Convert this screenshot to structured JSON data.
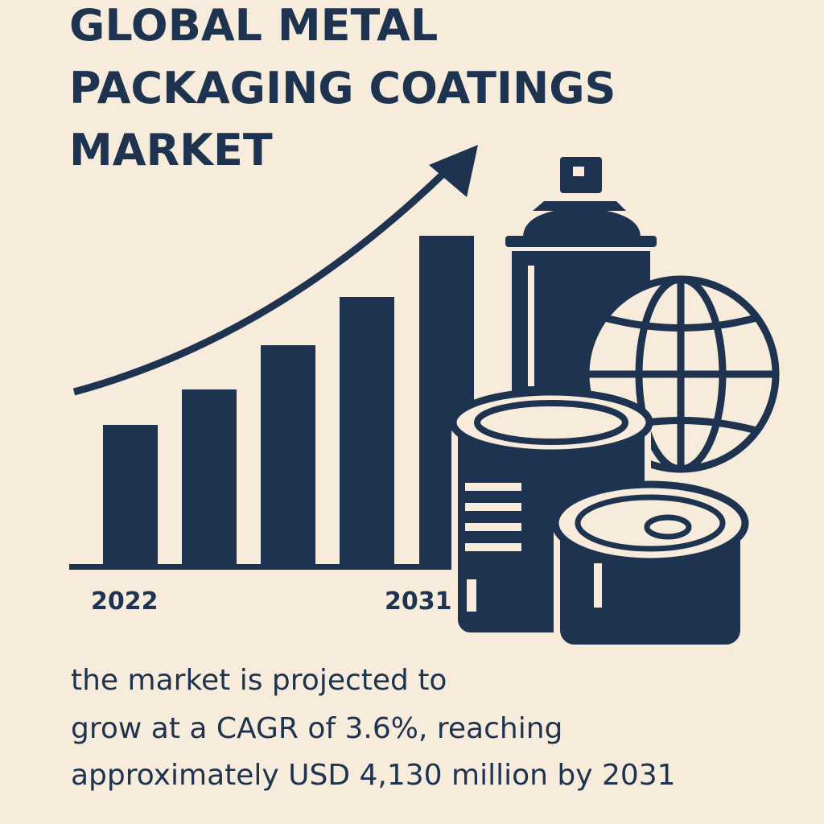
{
  "header": {
    "title_lines": [
      "GLOBAL METAL",
      "PACKAGING COATINGS",
      "MARKET"
    ]
  },
  "chart": {
    "start_label": "2022",
    "end_label": "2031"
  },
  "body": {
    "lines": [
      "the market is projected to",
      "grow at a CAGR of 3.6%, reaching",
      "approximately USD 4,130 million by 2031"
    ]
  }
}
